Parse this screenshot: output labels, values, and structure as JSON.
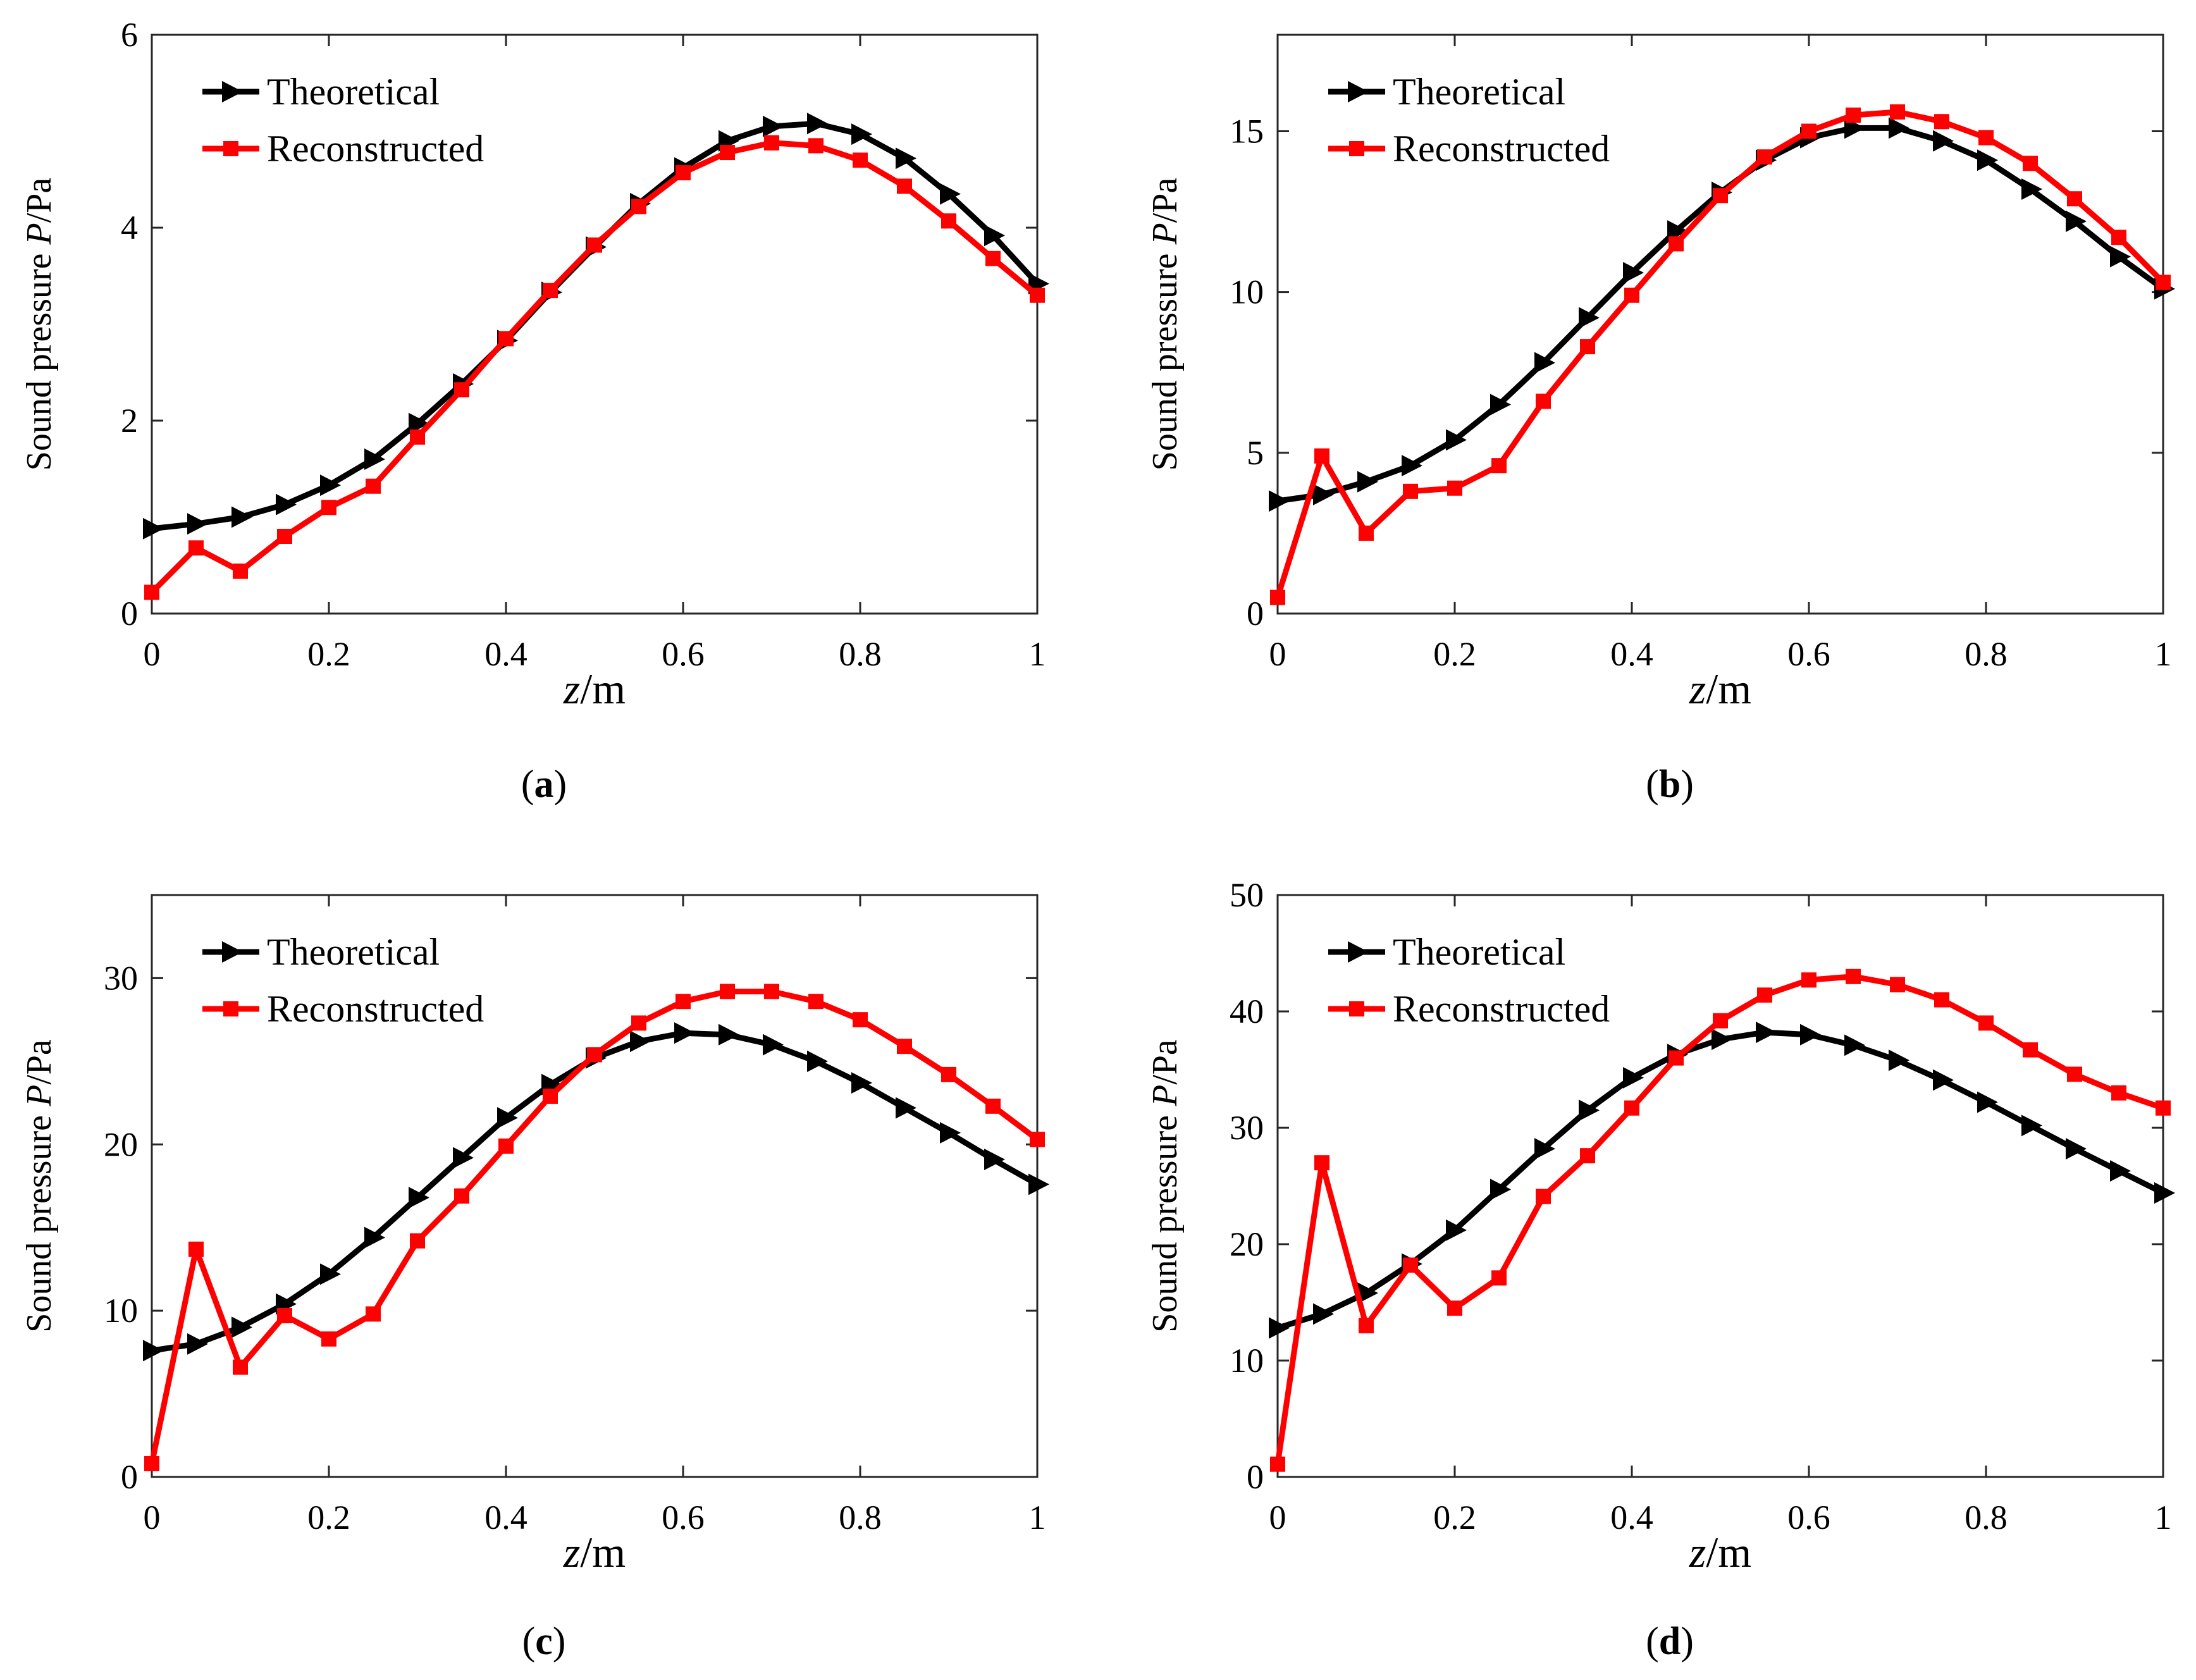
{
  "colors": {
    "theoretical": "#000000",
    "reconstructed": "#ff0000",
    "axis": "#262626",
    "background": "#ffffff"
  },
  "chart_data": [
    {
      "type": "line",
      "panel": "a",
      "caption": {
        "open": "(",
        "letter": "a",
        "close": ")"
      },
      "ylabel": {
        "prefix": "Sound pressure ",
        "italic": "P",
        "suffix": "/Pa"
      },
      "xlabel": {
        "italic": "z",
        "suffix": "/m"
      },
      "xlim": [
        0,
        1
      ],
      "ylim": [
        0,
        6
      ],
      "xticks": [
        0,
        0.2,
        0.4,
        0.6,
        0.8,
        1
      ],
      "xtick_labels": [
        "0",
        "0.2",
        "0.4",
        "0.6",
        "0.8",
        "1"
      ],
      "yticks": [
        0,
        2,
        4,
        6
      ],
      "ytick_labels": [
        "0",
        "2",
        "4",
        "6"
      ],
      "grid": false,
      "legend_position": "top-left",
      "x": [
        0,
        0.05,
        0.1,
        0.15,
        0.2,
        0.25,
        0.3,
        0.35,
        0.4,
        0.45,
        0.5,
        0.55,
        0.6,
        0.65,
        0.7,
        0.75,
        0.8,
        0.85,
        0.9,
        0.95,
        1
      ],
      "series": [
        {
          "name": "Theoretical",
          "marker": "triangle-right",
          "color": "#000000",
          "values": [
            0.88,
            0.93,
            1.0,
            1.13,
            1.33,
            1.6,
            1.97,
            2.38,
            2.83,
            3.33,
            3.8,
            4.25,
            4.62,
            4.9,
            5.05,
            5.08,
            4.97,
            4.72,
            4.35,
            3.92,
            3.42
          ]
        },
        {
          "name": "Reconstructed",
          "marker": "square",
          "color": "#ff0000",
          "values": [
            0.22,
            0.68,
            0.44,
            0.8,
            1.1,
            1.32,
            1.83,
            2.32,
            2.85,
            3.35,
            3.82,
            4.22,
            4.57,
            4.78,
            4.88,
            4.85,
            4.7,
            4.43,
            4.07,
            3.68,
            3.3
          ]
        }
      ]
    },
    {
      "type": "line",
      "panel": "b",
      "caption": {
        "open": "(",
        "letter": "b",
        "close": ")"
      },
      "ylabel": {
        "prefix": "Sound pressure ",
        "italic": "P",
        "suffix": "/Pa"
      },
      "xlabel": {
        "italic": "z",
        "suffix": "/m"
      },
      "xlim": [
        0,
        1
      ],
      "ylim": [
        0,
        18
      ],
      "xticks": [
        0,
        0.2,
        0.4,
        0.6,
        0.8,
        1
      ],
      "xtick_labels": [
        "0",
        "0.2",
        "0.4",
        "0.6",
        "0.8",
        "1"
      ],
      "yticks": [
        0,
        5,
        10,
        15
      ],
      "ytick_labels": [
        "0",
        "5",
        "10",
        "15"
      ],
      "grid": false,
      "legend_position": "top-left",
      "x": [
        0,
        0.05,
        0.1,
        0.15,
        0.2,
        0.25,
        0.3,
        0.35,
        0.4,
        0.45,
        0.5,
        0.55,
        0.6,
        0.65,
        0.7,
        0.75,
        0.8,
        0.85,
        0.9,
        0.95,
        1
      ],
      "series": [
        {
          "name": "Theoretical",
          "marker": "triangle-right",
          "color": "#000000",
          "values": [
            3.5,
            3.7,
            4.1,
            4.6,
            5.4,
            6.5,
            7.8,
            9.2,
            10.6,
            11.9,
            13.1,
            14.1,
            14.8,
            15.1,
            15.1,
            14.7,
            14.1,
            13.2,
            12.2,
            11.1,
            10.1
          ]
        },
        {
          "name": "Reconstructed",
          "marker": "square",
          "color": "#ff0000",
          "values": [
            0.5,
            4.9,
            2.5,
            3.8,
            3.9,
            4.6,
            6.6,
            8.3,
            9.9,
            11.5,
            13.0,
            14.2,
            15.0,
            15.5,
            15.6,
            15.3,
            14.8,
            14.0,
            12.9,
            11.7,
            10.3
          ]
        }
      ]
    },
    {
      "type": "line",
      "panel": "c",
      "caption": {
        "open": "(",
        "letter": "c",
        "close": ")"
      },
      "ylabel": {
        "prefix": "Sound pressure ",
        "italic": "P",
        "suffix": "/Pa"
      },
      "xlabel": {
        "italic": "z",
        "suffix": "/m"
      },
      "xlim": [
        0,
        1
      ],
      "ylim": [
        0,
        35
      ],
      "xticks": [
        0,
        0.2,
        0.4,
        0.6,
        0.8,
        1
      ],
      "xtick_labels": [
        "0",
        "0.2",
        "0.4",
        "0.6",
        "0.8",
        "1"
      ],
      "yticks": [
        0,
        10,
        20,
        30
      ],
      "ytick_labels": [
        "0",
        "10",
        "20",
        "30"
      ],
      "grid": false,
      "legend_position": "top-left",
      "x": [
        0,
        0.05,
        0.1,
        0.15,
        0.2,
        0.25,
        0.3,
        0.35,
        0.4,
        0.45,
        0.5,
        0.55,
        0.6,
        0.65,
        0.7,
        0.75,
        0.8,
        0.85,
        0.9,
        0.95,
        1
      ],
      "series": [
        {
          "name": "Theoretical",
          "marker": "triangle-right",
          "color": "#000000",
          "values": [
            7.6,
            8.0,
            9.0,
            10.4,
            12.2,
            14.4,
            16.8,
            19.2,
            21.6,
            23.6,
            25.2,
            26.2,
            26.7,
            26.6,
            26.0,
            25.0,
            23.7,
            22.2,
            20.7,
            19.1,
            17.6
          ]
        },
        {
          "name": "Reconstructed",
          "marker": "square",
          "color": "#ff0000",
          "values": [
            0.8,
            13.7,
            6.6,
            9.7,
            8.3,
            9.8,
            14.2,
            16.9,
            19.9,
            22.9,
            25.4,
            27.3,
            28.6,
            29.2,
            29.2,
            28.6,
            27.5,
            25.9,
            24.2,
            22.3,
            20.3
          ]
        }
      ]
    },
    {
      "type": "line",
      "panel": "d",
      "caption": {
        "open": "(",
        "letter": "d",
        "close": ")"
      },
      "ylabel": {
        "prefix": "Sound pressure ",
        "italic": "P",
        "suffix": "/Pa"
      },
      "xlabel": {
        "italic": "z",
        "suffix": "/m"
      },
      "xlim": [
        0,
        1
      ],
      "ylim": [
        0,
        50
      ],
      "xticks": [
        0,
        0.2,
        0.4,
        0.6,
        0.8,
        1
      ],
      "xtick_labels": [
        "0",
        "0.2",
        "0.4",
        "0.6",
        "0.8",
        "1"
      ],
      "yticks": [
        0,
        10,
        20,
        30,
        40,
        50
      ],
      "ytick_labels": [
        "0",
        "10",
        "20",
        "30",
        "40",
        "50"
      ],
      "grid": false,
      "legend_position": "top-left",
      "x": [
        0,
        0.05,
        0.1,
        0.15,
        0.2,
        0.25,
        0.3,
        0.35,
        0.4,
        0.45,
        0.5,
        0.55,
        0.6,
        0.65,
        0.7,
        0.75,
        0.8,
        0.85,
        0.9,
        0.95,
        1
      ],
      "series": [
        {
          "name": "Theoretical",
          "marker": "triangle-right",
          "color": "#000000",
          "values": [
            12.8,
            14.0,
            15.8,
            18.3,
            21.2,
            24.7,
            28.2,
            31.5,
            34.3,
            36.3,
            37.6,
            38.2,
            38.0,
            37.1,
            35.8,
            34.1,
            32.2,
            30.2,
            28.2,
            26.3,
            24.4
          ]
        },
        {
          "name": "Reconstructed",
          "marker": "square",
          "color": "#ff0000",
          "values": [
            1.1,
            27.0,
            13.0,
            18.2,
            14.5,
            17.1,
            24.1,
            27.6,
            31.7,
            36.0,
            39.2,
            41.4,
            42.7,
            43.0,
            42.3,
            41.0,
            39.0,
            36.7,
            34.6,
            33.0,
            31.7
          ]
        }
      ]
    }
  ]
}
